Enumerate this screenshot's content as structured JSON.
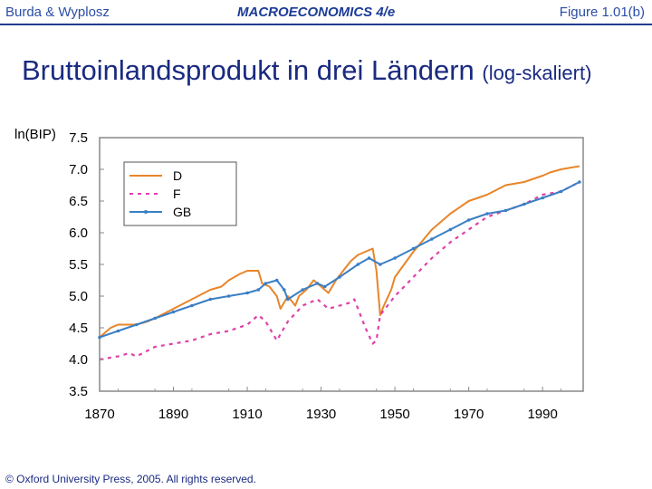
{
  "header": {
    "left": "Burda & Wyplosz",
    "center": "MACROECONOMICS  4/e",
    "right": "Figure 1.01(b)"
  },
  "footer": "© Oxford University Press, 2005. All rights reserved.",
  "chart_data": {
    "type": "line",
    "title": "Bruttoinlandsprodukt in drei Ländern",
    "subtitle": "(log-skaliert)",
    "xlabel": "",
    "ylabel": "ln(BIP)",
    "xlim": [
      1870,
      2001
    ],
    "ylim": [
      3.5,
      7.5
    ],
    "xticks": [
      "1870",
      "1890",
      "1910",
      "1930",
      "1950",
      "1970",
      "1990"
    ],
    "yticks": [
      "3.5",
      "4.0",
      "4.5",
      "5.0",
      "5.5",
      "6.0",
      "6.5",
      "7.0",
      "7.5"
    ],
    "legend_position": "top-left",
    "series": [
      {
        "name": "D",
        "color": "#e8852a",
        "style": "solid",
        "x": [
          1870,
          1873,
          1875,
          1880,
          1883,
          1885,
          1890,
          1895,
          1900,
          1903,
          1905,
          1908,
          1910,
          1913,
          1914,
          1916,
          1918,
          1919,
          1921,
          1923,
          1924,
          1926,
          1928,
          1930,
          1932,
          1934,
          1936,
          1938,
          1940,
          1942,
          1944,
          1945,
          1946,
          1947,
          1949,
          1950,
          1955,
          1960,
          1965,
          1970,
          1975,
          1980,
          1985,
          1990,
          1992,
          1995,
          2000
        ],
        "y": [
          4.35,
          4.5,
          4.55,
          4.55,
          4.6,
          4.65,
          4.8,
          4.95,
          5.1,
          5.15,
          5.25,
          5.35,
          5.4,
          5.4,
          5.2,
          5.15,
          5.0,
          4.8,
          5.0,
          4.85,
          5.0,
          5.1,
          5.25,
          5.15,
          5.05,
          5.25,
          5.4,
          5.55,
          5.65,
          5.7,
          5.75,
          5.4,
          4.7,
          4.85,
          5.1,
          5.3,
          5.7,
          6.05,
          6.3,
          6.5,
          6.6,
          6.75,
          6.8,
          6.9,
          6.95,
          7.0,
          7.05
        ]
      },
      {
        "name": "F",
        "color": "#e040a8",
        "style": "dashed",
        "x": [
          1870,
          1875,
          1878,
          1880,
          1885,
          1890,
          1895,
          1900,
          1905,
          1910,
          1913,
          1915,
          1918,
          1919,
          1921,
          1925,
          1929,
          1932,
          1935,
          1938,
          1939,
          1942,
          1944,
          1945,
          1946,
          1948,
          1950,
          1955,
          1960,
          1965,
          1970,
          1975,
          1980,
          1985,
          1990,
          1995,
          2000
        ],
        "y": [
          4.0,
          4.05,
          4.1,
          4.05,
          4.2,
          4.25,
          4.3,
          4.4,
          4.45,
          4.55,
          4.7,
          4.6,
          4.3,
          4.4,
          4.6,
          4.85,
          4.95,
          4.8,
          4.85,
          4.9,
          4.95,
          4.5,
          4.25,
          4.3,
          4.7,
          4.85,
          5.0,
          5.3,
          5.6,
          5.85,
          6.05,
          6.25,
          6.35,
          6.45,
          6.6,
          6.65,
          6.8
        ]
      },
      {
        "name": "GB",
        "color": "#3a7fc4",
        "style": "dotted-line",
        "x": [
          1870,
          1875,
          1880,
          1885,
          1890,
          1895,
          1900,
          1905,
          1910,
          1913,
          1915,
          1918,
          1920,
          1921,
          1925,
          1929,
          1931,
          1935,
          1940,
          1943,
          1946,
          1950,
          1955,
          1960,
          1965,
          1970,
          1975,
          1980,
          1985,
          1990,
          1995,
          2000
        ],
        "y": [
          4.35,
          4.45,
          4.55,
          4.65,
          4.75,
          4.85,
          4.95,
          5.0,
          5.05,
          5.1,
          5.2,
          5.25,
          5.1,
          4.95,
          5.1,
          5.2,
          5.15,
          5.3,
          5.5,
          5.6,
          5.5,
          5.6,
          5.75,
          5.9,
          6.05,
          6.2,
          6.3,
          6.35,
          6.45,
          6.55,
          6.65,
          6.8
        ]
      }
    ]
  }
}
